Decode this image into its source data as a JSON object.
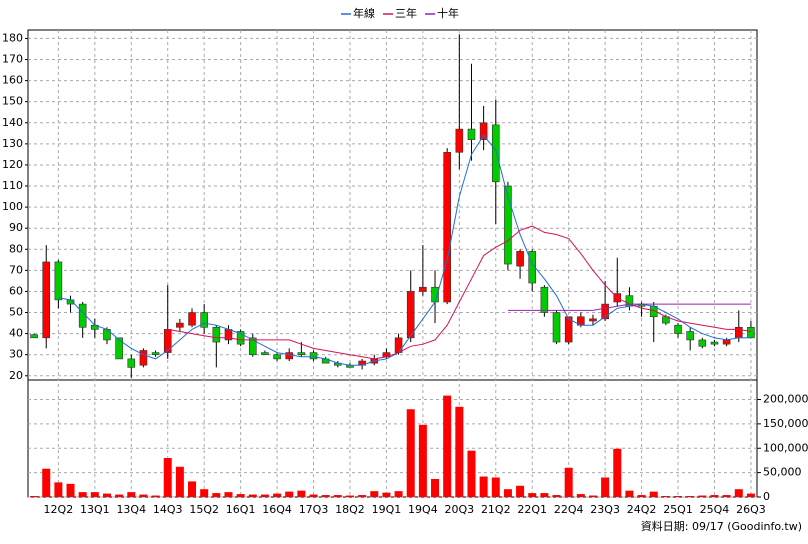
{
  "chart_data": {
    "type": "candlestick",
    "categories": [
      null,
      null,
      "12Q2",
      null,
      null,
      "13Q1",
      null,
      null,
      "13Q4",
      null,
      null,
      "14Q3",
      null,
      null,
      "15Q2",
      null,
      null,
      "16Q1",
      null,
      null,
      "16Q4",
      null,
      null,
      "17Q3",
      null,
      null,
      "18Q2",
      null,
      null,
      "19Q1",
      null,
      null,
      "19Q4",
      null,
      null,
      "20Q3",
      null,
      null,
      "21Q2",
      null,
      null,
      "22Q1",
      null,
      null,
      "22Q4",
      null,
      null,
      "23Q3",
      null,
      null,
      "24Q2",
      null,
      null,
      "25Q1",
      null,
      null,
      "25Q4",
      null,
      null,
      "26Q3"
    ],
    "open": [
      39.5,
      38,
      74,
      56,
      54,
      44,
      42,
      38,
      28,
      25,
      31,
      31,
      43,
      44,
      50,
      43,
      37,
      41,
      38,
      31,
      30,
      28,
      31,
      31,
      28,
      26,
      25,
      25,
      26,
      29,
      31,
      38,
      60,
      62,
      55,
      126,
      137,
      132,
      139,
      110,
      72,
      79,
      62,
      50,
      36,
      44,
      46,
      47,
      55,
      58,
      54,
      53,
      48,
      44,
      41,
      37,
      36,
      35,
      38,
      43
    ],
    "high": [
      40,
      82,
      75,
      58,
      55,
      47,
      43,
      38,
      30,
      33,
      32,
      63,
      47,
      52,
      54,
      44,
      44,
      42,
      40,
      32,
      31,
      33,
      36,
      32,
      29,
      27,
      26,
      28,
      30,
      33,
      40,
      70,
      82,
      70,
      128,
      182,
      168,
      148,
      151,
      112,
      80,
      80,
      63,
      51,
      48,
      50,
      49,
      65,
      76,
      62,
      55,
      55,
      49,
      45,
      43,
      38,
      37,
      38,
      51,
      46
    ],
    "low": [
      38,
      33,
      52,
      50,
      38,
      38,
      35,
      28,
      19,
      24,
      29,
      28,
      41,
      43,
      40,
      24,
      35,
      34,
      29,
      30,
      27,
      27,
      29,
      27,
      26,
      24,
      24,
      23,
      25,
      28,
      30,
      36,
      58,
      45,
      54,
      118,
      122,
      127,
      92,
      70,
      66,
      60,
      48,
      35,
      35,
      43,
      44,
      46,
      53,
      51,
      48,
      36,
      44,
      38,
      32,
      33,
      34,
      34,
      36,
      38
    ],
    "close": [
      38,
      74,
      56,
      54,
      43,
      42,
      37,
      28,
      24,
      32,
      30,
      42,
      45,
      50,
      43,
      36,
      42,
      35,
      30,
      30,
      28,
      31,
      30,
      28,
      26,
      25,
      24,
      27,
      28,
      31,
      38,
      60,
      62,
      55,
      126,
      137,
      132,
      140,
      112,
      73,
      79,
      64,
      50,
      36,
      48,
      48,
      47,
      54,
      59,
      53,
      53,
      48,
      45,
      40,
      37,
      34,
      35,
      37,
      43,
      38
    ],
    "up_color": "#ff0000",
    "down_color": "#00cc00",
    "ylim": [
      18,
      184
    ],
    "yticks": [
      20,
      30,
      40,
      50,
      60,
      70,
      80,
      90,
      100,
      110,
      120,
      130,
      140,
      150,
      160,
      170,
      180
    ],
    "grid": true,
    "series": [
      {
        "name": "年線",
        "color": "#1f6fd6",
        "values": [
          null,
          null,
          57,
          56,
          50,
          44,
          42,
          37,
          33,
          30,
          28,
          32,
          37,
          42,
          45,
          44,
          42,
          40,
          37,
          34,
          31,
          30,
          29,
          29,
          28,
          26,
          25,
          25,
          27,
          28,
          31,
          39,
          47,
          55,
          75,
          105,
          125,
          134,
          127,
          105,
          87,
          73,
          66,
          58,
          47,
          44,
          44,
          48,
          52,
          53,
          54,
          53,
          50,
          47,
          43,
          40,
          38,
          37,
          38,
          38
        ]
      },
      {
        "name": "三年",
        "color": "#d6105a",
        "values": [
          null,
          null,
          null,
          null,
          null,
          null,
          null,
          null,
          null,
          null,
          null,
          42,
          41,
          40,
          39,
          38,
          38,
          37,
          37,
          37,
          37,
          37,
          35,
          33,
          32,
          31,
          30,
          29,
          28,
          29,
          31,
          34,
          35,
          37,
          44,
          55,
          66,
          77,
          81,
          84,
          89,
          91,
          88,
          87,
          85,
          78,
          70,
          63,
          57,
          54,
          52,
          51,
          48,
          46,
          45,
          44,
          43,
          42,
          42,
          41
        ]
      },
      {
        "name": "十年",
        "color": "#9b1fb8",
        "values": [
          null,
          null,
          null,
          null,
          null,
          null,
          null,
          null,
          null,
          null,
          null,
          null,
          null,
          null,
          null,
          null,
          null,
          null,
          null,
          null,
          null,
          null,
          null,
          null,
          null,
          null,
          null,
          null,
          null,
          null,
          null,
          null,
          null,
          null,
          null,
          null,
          null,
          null,
          null,
          51,
          51,
          51,
          51,
          51,
          51,
          51,
          51,
          52,
          53,
          54,
          54,
          54,
          54,
          54,
          54,
          54,
          54,
          54,
          54,
          54
        ]
      }
    ],
    "volume": {
      "color": "#ff0000",
      "values": [
        2000,
        58000,
        30000,
        27000,
        10000,
        10000,
        7000,
        5000,
        10000,
        5000,
        3000,
        80000,
        62000,
        32000,
        16000,
        8000,
        10000,
        6000,
        5000,
        5000,
        7000,
        11000,
        13000,
        5000,
        4000,
        4000,
        3000,
        4000,
        12000,
        9000,
        12000,
        180000,
        148000,
        37000,
        208000,
        185000,
        95000,
        42000,
        40000,
        16000,
        23000,
        8000,
        8000,
        4000,
        60000,
        6000,
        3000,
        40000,
        99000,
        13000,
        4000,
        11000,
        2000,
        2000,
        2000,
        3000,
        4000,
        4000,
        16000,
        7000
      ],
      "ylim": [
        0,
        240000
      ],
      "yticks": [
        0,
        {
          "value": 50000,
          "label": "50,000"
        },
        {
          "value": 100000,
          "label": "100,000"
        },
        {
          "value": 150000,
          "label": "150,000"
        },
        {
          "value": 200000,
          "label": "200,000"
        }
      ]
    },
    "footer": "資料日期: 09/17 (Goodinfo.tw)"
  }
}
